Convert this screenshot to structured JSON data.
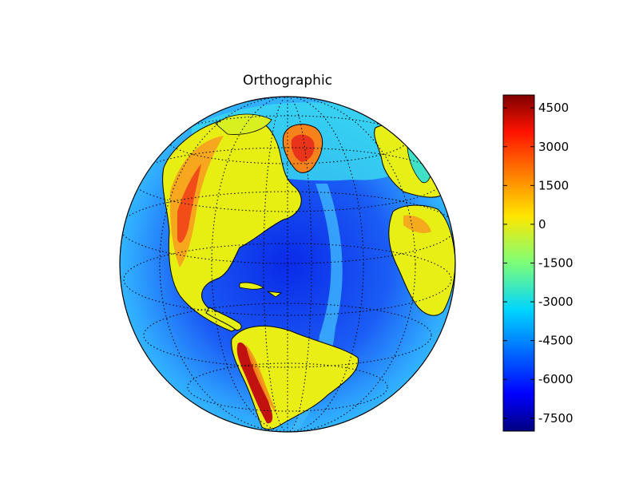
{
  "title": "Orthographic",
  "projection": "orthographic",
  "colormap": "jet",
  "graticule": {
    "style": "dotted",
    "color": "#000000"
  },
  "coastline_color": "#000000",
  "colorbar": {
    "range": [
      -8000,
      5000
    ],
    "ticks": [
      {
        "value": 4500,
        "label": "4500"
      },
      {
        "value": 3000,
        "label": "3000"
      },
      {
        "value": 1500,
        "label": "1500"
      },
      {
        "value": 0,
        "label": "0"
      },
      {
        "value": -1500,
        "label": "-1500"
      },
      {
        "value": -3000,
        "label": "-3000"
      },
      {
        "value": -4500,
        "label": "-4500"
      },
      {
        "value": -6000,
        "label": "-6000"
      },
      {
        "value": -7500,
        "label": "-7500"
      }
    ]
  },
  "regions": [
    {
      "id": "north-america",
      "elevation": 500
    },
    {
      "id": "rockies",
      "elevation": 2200
    },
    {
      "id": "greenland",
      "elevation": 3000
    },
    {
      "id": "south-america",
      "elevation": 600
    },
    {
      "id": "andes",
      "elevation": 4500
    },
    {
      "id": "europe",
      "elevation": 400
    },
    {
      "id": "africa",
      "elevation": 500
    },
    {
      "id": "mid-atlantic-ridge",
      "elevation": -2500
    }
  ]
}
